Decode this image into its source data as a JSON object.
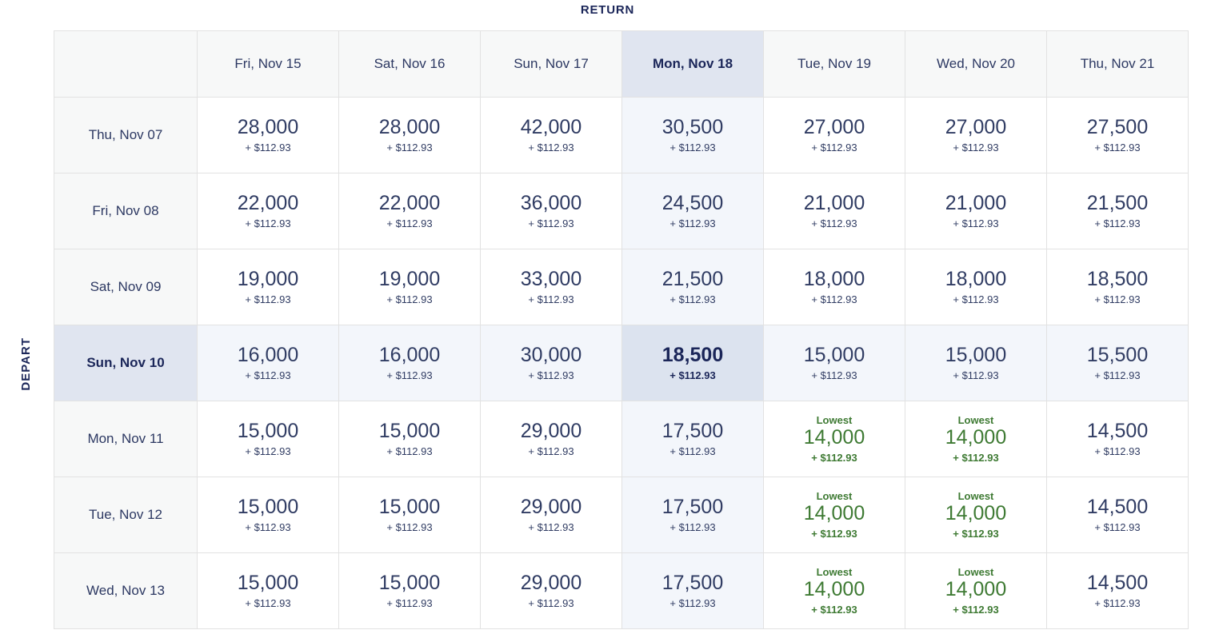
{
  "page": {
    "return_label": "RETURN",
    "depart_label": "DEPART",
    "lowest_label": "Lowest"
  },
  "calendar": {
    "selected_return": "Mon, Nov 18",
    "selected_depart": "Sun, Nov 10",
    "selected_fare": {
      "miles": "18,500",
      "taxes": "+ $112.93"
    },
    "return_dates": [
      "Fri, Nov 15",
      "Sat, Nov 16",
      "Sun, Nov 17",
      "Mon, Nov 18",
      "Tue, Nov 19",
      "Wed, Nov 20",
      "Thu, Nov 21"
    ],
    "rows": [
      {
        "depart": "Thu, Nov 07",
        "cells": [
          {
            "miles": "28,000",
            "taxes": "+ $112.93"
          },
          {
            "miles": "28,000",
            "taxes": "+ $112.93"
          },
          {
            "miles": "42,000",
            "taxes": "+ $112.93"
          },
          {
            "miles": "30,500",
            "taxes": "+ $112.93"
          },
          {
            "miles": "27,000",
            "taxes": "+ $112.93"
          },
          {
            "miles": "27,000",
            "taxes": "+ $112.93"
          },
          {
            "miles": "27,500",
            "taxes": "+ $112.93"
          }
        ]
      },
      {
        "depart": "Fri, Nov 08",
        "cells": [
          {
            "miles": "22,000",
            "taxes": "+ $112.93"
          },
          {
            "miles": "22,000",
            "taxes": "+ $112.93"
          },
          {
            "miles": "36,000",
            "taxes": "+ $112.93"
          },
          {
            "miles": "24,500",
            "taxes": "+ $112.93"
          },
          {
            "miles": "21,000",
            "taxes": "+ $112.93"
          },
          {
            "miles": "21,000",
            "taxes": "+ $112.93"
          },
          {
            "miles": "21,500",
            "taxes": "+ $112.93"
          }
        ]
      },
      {
        "depart": "Sat, Nov 09",
        "cells": [
          {
            "miles": "19,000",
            "taxes": "+ $112.93"
          },
          {
            "miles": "19,000",
            "taxes": "+ $112.93"
          },
          {
            "miles": "33,000",
            "taxes": "+ $112.93"
          },
          {
            "miles": "21,500",
            "taxes": "+ $112.93"
          },
          {
            "miles": "18,000",
            "taxes": "+ $112.93"
          },
          {
            "miles": "18,000",
            "taxes": "+ $112.93"
          },
          {
            "miles": "18,500",
            "taxes": "+ $112.93"
          }
        ]
      },
      {
        "depart": "Sun, Nov 10",
        "selected": true,
        "cells": [
          {
            "miles": "16,000",
            "taxes": "+ $112.93"
          },
          {
            "miles": "16,000",
            "taxes": "+ $112.93"
          },
          {
            "miles": "30,000",
            "taxes": "+ $112.93"
          },
          {
            "miles": "18,500",
            "taxes": "+ $112.93",
            "selected": true
          },
          {
            "miles": "15,000",
            "taxes": "+ $112.93"
          },
          {
            "miles": "15,000",
            "taxes": "+ $112.93"
          },
          {
            "miles": "15,500",
            "taxes": "+ $112.93"
          }
        ]
      },
      {
        "depart": "Mon, Nov 11",
        "cells": [
          {
            "miles": "15,000",
            "taxes": "+ $112.93"
          },
          {
            "miles": "15,000",
            "taxes": "+ $112.93"
          },
          {
            "miles": "29,000",
            "taxes": "+ $112.93"
          },
          {
            "miles": "17,500",
            "taxes": "+ $112.93"
          },
          {
            "miles": "14,000",
            "taxes": "+ $112.93",
            "lowest": true
          },
          {
            "miles": "14,000",
            "taxes": "+ $112.93",
            "lowest": true
          },
          {
            "miles": "14,500",
            "taxes": "+ $112.93"
          }
        ]
      },
      {
        "depart": "Tue, Nov 12",
        "cells": [
          {
            "miles": "15,000",
            "taxes": "+ $112.93"
          },
          {
            "miles": "15,000",
            "taxes": "+ $112.93"
          },
          {
            "miles": "29,000",
            "taxes": "+ $112.93"
          },
          {
            "miles": "17,500",
            "taxes": "+ $112.93"
          },
          {
            "miles": "14,000",
            "taxes": "+ $112.93",
            "lowest": true
          },
          {
            "miles": "14,000",
            "taxes": "+ $112.93",
            "lowest": true
          },
          {
            "miles": "14,500",
            "taxes": "+ $112.93"
          }
        ]
      },
      {
        "depart": "Wed, Nov 13",
        "cells": [
          {
            "miles": "15,000",
            "taxes": "+ $112.93"
          },
          {
            "miles": "15,000",
            "taxes": "+ $112.93"
          },
          {
            "miles": "29,000",
            "taxes": "+ $112.93"
          },
          {
            "miles": "17,500",
            "taxes": "+ $112.93"
          },
          {
            "miles": "14,000",
            "taxes": "+ $112.93",
            "lowest": true
          },
          {
            "miles": "14,000",
            "taxes": "+ $112.93",
            "lowest": true
          },
          {
            "miles": "14,500",
            "taxes": "+ $112.93"
          }
        ]
      }
    ]
  },
  "colors": {
    "navy": "#1b2659",
    "text_navy": "#303c63",
    "lowest_green": "#3e7a33",
    "selected_header_bg": "#e0e5f0",
    "selected_cell_bg": "#dce3ef",
    "selected_row_col_tint": "#f3f6fb",
    "header_bg": "#f7f8f8",
    "border": "#e2e2e2"
  }
}
